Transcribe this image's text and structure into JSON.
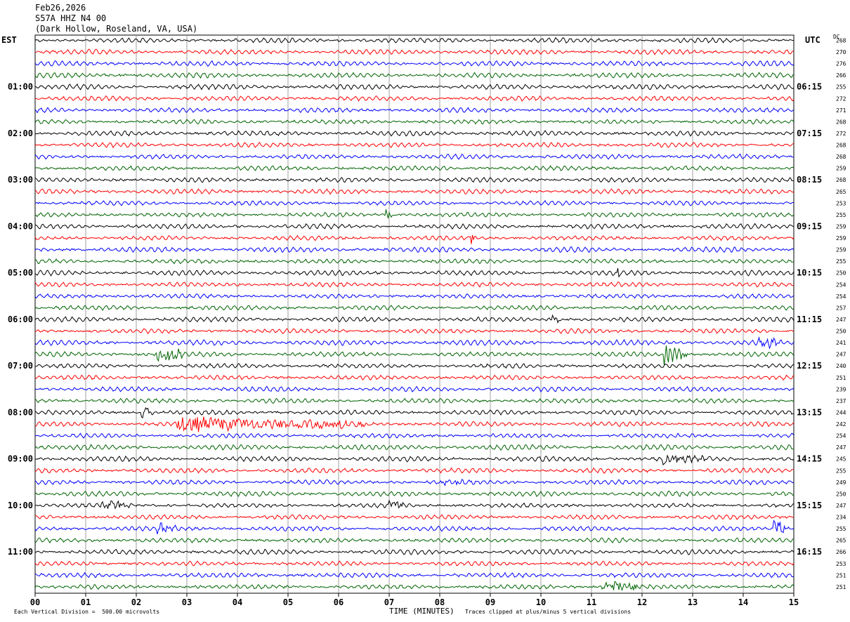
{
  "header": {
    "date": "Feb26,2026",
    "station": "S57A HHZ N4 00",
    "location": "(Dark Hollow, Roseland, VA, USA)"
  },
  "left_tz": "EST",
  "right_tz": "UTC",
  "dc_label": "DC",
  "footer": {
    "scale_note": "Each Vertical Division =  500.00 microvolts",
    "x_title": "TIME (MINUTES)",
    "clip_note": "Traces clipped at plus/minus 5 vertical divisions"
  },
  "chart_data": {
    "type": "line",
    "title": "",
    "xlabel": "TIME (MINUTES)",
    "ylabel": "",
    "xlim": [
      0,
      15
    ],
    "x_ticks": [
      "00",
      "01",
      "02",
      "03",
      "04",
      "05",
      "06",
      "07",
      "08",
      "09",
      "10",
      "11",
      "12",
      "13",
      "14",
      "15"
    ],
    "grid": true,
    "row_minutes": 15,
    "row_colors": [
      "#000000",
      "#ff0000",
      "#0000ff",
      "#006400"
    ],
    "rows": 48,
    "left_hour_labels": [
      {
        "row": 4,
        "label": "01:00"
      },
      {
        "row": 8,
        "label": "02:00"
      },
      {
        "row": 12,
        "label": "03:00"
      },
      {
        "row": 16,
        "label": "04:00"
      },
      {
        "row": 20,
        "label": "05:00"
      },
      {
        "row": 24,
        "label": "06:00"
      },
      {
        "row": 28,
        "label": "07:00"
      },
      {
        "row": 32,
        "label": "08:00"
      },
      {
        "row": 36,
        "label": "09:00"
      },
      {
        "row": 40,
        "label": "10:00"
      },
      {
        "row": 44,
        "label": "11:00"
      }
    ],
    "right_hour_labels": [
      {
        "row": 4,
        "label": "06:15"
      },
      {
        "row": 8,
        "label": "07:15"
      },
      {
        "row": 12,
        "label": "08:15"
      },
      {
        "row": 16,
        "label": "09:15"
      },
      {
        "row": 20,
        "label": "10:15"
      },
      {
        "row": 24,
        "label": "11:15"
      },
      {
        "row": 28,
        "label": "12:15"
      },
      {
        "row": 32,
        "label": "13:15"
      },
      {
        "row": 36,
        "label": "14:15"
      },
      {
        "row": 40,
        "label": "15:15"
      },
      {
        "row": 44,
        "label": "16:15"
      }
    ],
    "dc_offsets": [
      "268",
      "270",
      "276",
      "266",
      "255",
      "272",
      "271",
      "268",
      "272",
      "268",
      "268",
      "259",
      "268",
      "265",
      "253",
      "255",
      "259",
      "259",
      "259",
      "255",
      "250",
      "254",
      "254",
      "257",
      "247",
      "250",
      "241",
      "247",
      "240",
      "251",
      "239",
      "237",
      "244",
      "242",
      "254",
      "247",
      "245",
      "255",
      "249",
      "250",
      "247",
      "234",
      "255",
      "265",
      "266",
      "253",
      "251",
      "251"
    ],
    "events": [
      {
        "row": 15,
        "minute": 6.9,
        "duration": 0.2,
        "amp": 2.2
      },
      {
        "row": 17,
        "minute": 8.6,
        "duration": 0.1,
        "amp": 3.0
      },
      {
        "row": 20,
        "minute": 11.5,
        "duration": 0.1,
        "amp": 2.0
      },
      {
        "row": 24,
        "minute": 10.2,
        "duration": 0.15,
        "amp": 4.0
      },
      {
        "row": 26,
        "minute": 14.3,
        "duration": 0.5,
        "amp": 1.6
      },
      {
        "row": 27,
        "minute": 2.4,
        "duration": 0.5,
        "amp": 4.0
      },
      {
        "row": 27,
        "minute": 12.4,
        "duration": 0.5,
        "amp": 4.0
      },
      {
        "row": 32,
        "minute": 2.1,
        "duration": 0.25,
        "amp": 3.5
      },
      {
        "row": 33,
        "minute": 2.8,
        "duration": 3.8,
        "amp": 2.4
      },
      {
        "row": 36,
        "minute": 12.4,
        "duration": 1.0,
        "amp": 1.6
      },
      {
        "row": 38,
        "minute": 8.0,
        "duration": 0.8,
        "amp": 1.4
      },
      {
        "row": 40,
        "minute": 1.3,
        "duration": 0.6,
        "amp": 1.8
      },
      {
        "row": 40,
        "minute": 7.0,
        "duration": 0.3,
        "amp": 2.0
      },
      {
        "row": 42,
        "minute": 2.4,
        "duration": 0.4,
        "amp": 1.8
      },
      {
        "row": 42,
        "minute": 14.6,
        "duration": 0.3,
        "amp": 3.0
      },
      {
        "row": 47,
        "minute": 11.2,
        "duration": 1.0,
        "amp": 2.0
      }
    ]
  }
}
